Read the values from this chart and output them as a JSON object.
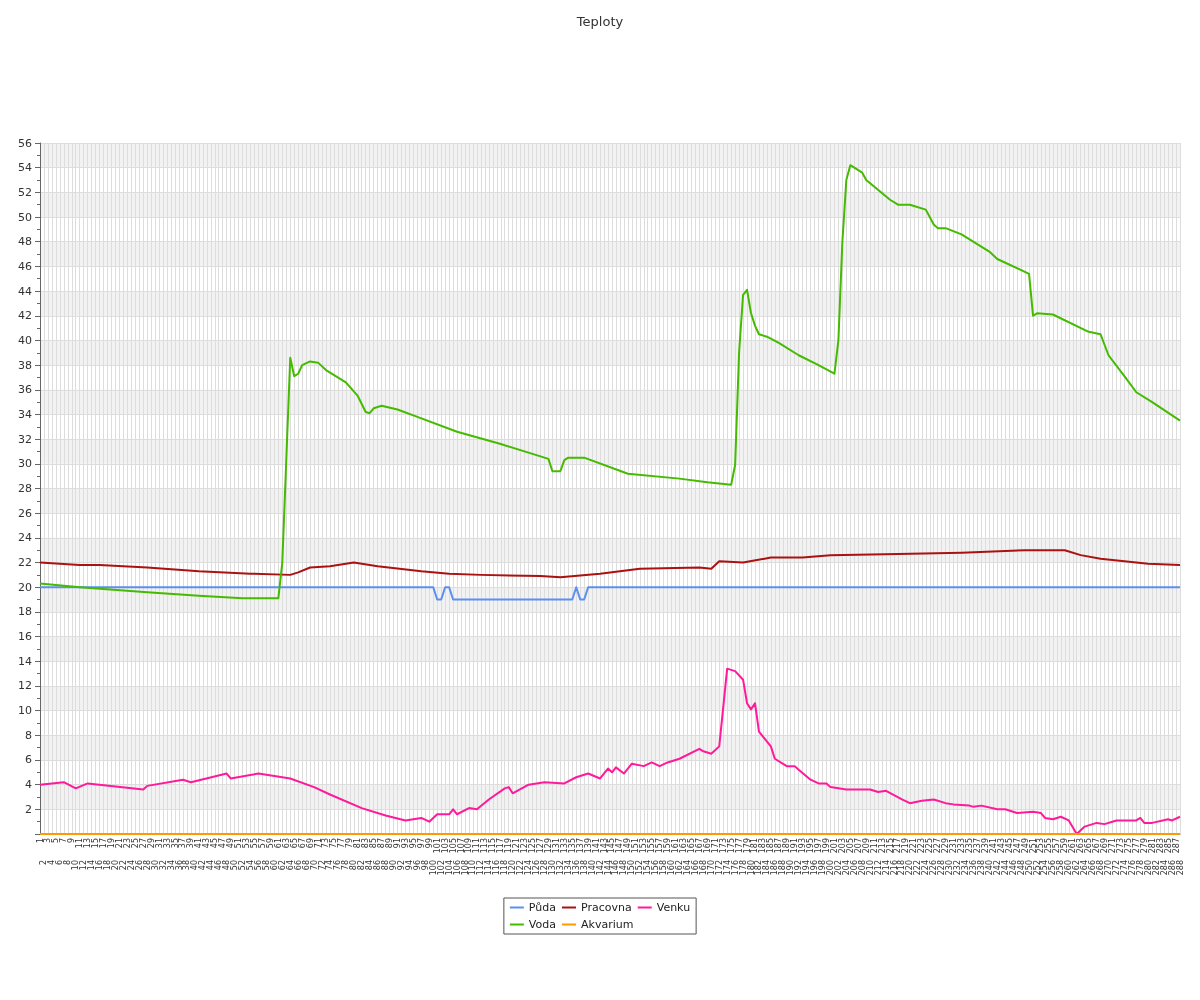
{
  "chart_data": {
    "type": "line",
    "title": "Teploty",
    "categories": [
      "1",
      "2",
      "3",
      "4",
      "5",
      "6",
      "7",
      "8",
      "9",
      "10",
      "11",
      "12",
      "13",
      "14",
      "15",
      "16",
      "17",
      "18",
      "19",
      "20",
      "21",
      "22",
      "23",
      "24",
      "25",
      "26",
      "27",
      "28",
      "29",
      "30",
      "31",
      "32",
      "33",
      "34",
      "35",
      "36",
      "37",
      "38",
      "39",
      "40",
      "41",
      "42",
      "43",
      "44",
      "45",
      "46",
      "47",
      "48",
      "49",
      "50",
      "51",
      "52",
      "53",
      "54",
      "55",
      "56",
      "57",
      "58",
      "59",
      "60",
      "61",
      "62",
      "63",
      "64",
      "65",
      "66",
      "67",
      "68",
      "69",
      "70",
      "71",
      "72",
      "73",
      "74",
      "75",
      "76",
      "77",
      "78",
      "79",
      "80",
      "81",
      "82",
      "83",
      "84",
      "85",
      "86",
      "87",
      "88",
      "89",
      "90",
      "91",
      "92",
      "93",
      "94",
      "95",
      "96",
      "97",
      "98",
      "99",
      "100",
      "101",
      "102",
      "103",
      "104",
      "105",
      "106",
      "107",
      "108",
      "109",
      "110",
      "111",
      "112",
      "113",
      "114",
      "115",
      "116",
      "117",
      "118",
      "119",
      "120",
      "121",
      "122",
      "123",
      "124",
      "125",
      "126",
      "127",
      "128",
      "129",
      "130",
      "131",
      "132",
      "133",
      "134",
      "135",
      "136",
      "137",
      "138",
      "139",
      "140",
      "141",
      "142",
      "143",
      "144",
      "145",
      "146",
      "147",
      "148",
      "149",
      "150",
      "151",
      "152",
      "153",
      "154",
      "155",
      "156",
      "157",
      "158",
      "159",
      "160",
      "161",
      "162",
      "163",
      "164",
      "165",
      "166",
      "167",
      "168",
      "169",
      "170",
      "171",
      "172",
      "173",
      "174",
      "175",
      "176",
      "177",
      "178",
      "179",
      "180",
      "181",
      "182",
      "183",
      "184",
      "185",
      "186",
      "187",
      "188",
      "189",
      "190",
      "191",
      "192",
      "193",
      "194",
      "195",
      "196",
      "197",
      "198",
      "199",
      "200",
      "201",
      "202",
      "203",
      "204",
      "205",
      "206",
      "207",
      "208",
      "209",
      "210",
      "211",
      "212",
      "213",
      "214",
      "215",
      "216",
      "217",
      "218",
      "219",
      "220",
      "221",
      "222",
      "223",
      "224",
      "225",
      "226",
      "227",
      "228",
      "229",
      "230",
      "231",
      "232",
      "233",
      "234",
      "235",
      "236",
      "237",
      "238",
      "239",
      "240",
      "241",
      "242",
      "243",
      "244",
      "245",
      "246",
      "247",
      "248",
      "249",
      "250",
      "251",
      "252",
      "253",
      "254",
      "255",
      "256",
      "257",
      "258",
      "259",
      "260",
      "261",
      "262",
      "263",
      "264",
      "265",
      "266",
      "267",
      "268",
      "269",
      "270",
      "271",
      "272",
      "273",
      "274",
      "275",
      "276",
      "277",
      "278",
      "279",
      "280",
      "281",
      "282",
      "283",
      "284",
      "285",
      "286",
      "287",
      "288"
    ],
    "series": [
      {
        "name": "Půda",
        "color": "#5b8ff0",
        "x": [
          "1",
          "100",
          "101",
          "102",
          "103",
          "104",
          "105",
          "135",
          "136",
          "137",
          "138",
          "139",
          "288"
        ],
        "values": [
          20,
          20,
          19,
          19,
          20,
          20,
          19,
          19,
          20,
          19,
          19,
          20,
          20
        ]
      },
      {
        "name": "Pracovna",
        "color": "#aa1111",
        "x": [
          "1",
          "11",
          "16",
          "28",
          "41",
          "54",
          "64",
          "66",
          "69",
          "74",
          "80",
          "86",
          "97",
          "104",
          "112",
          "127",
          "132",
          "142",
          "152",
          "167",
          "170",
          "172",
          "178",
          "185",
          "193",
          "200",
          "217",
          "233",
          "249",
          "259",
          "263",
          "268",
          "280",
          "288"
        ],
        "values": [
          22.0,
          21.8,
          21.8,
          21.6,
          21.3,
          21.1,
          21.0,
          21.2,
          21.6,
          21.7,
          22.0,
          21.7,
          21.3,
          21.1,
          21.0,
          20.9,
          20.8,
          21.1,
          21.5,
          21.6,
          21.5,
          22.1,
          22.0,
          22.4,
          22.4,
          22.6,
          22.7,
          22.8,
          23.0,
          23.0,
          22.6,
          22.3,
          21.9,
          21.8
        ]
      },
      {
        "name": "Venku",
        "color": "#ff1a99",
        "x": [
          "1",
          "7",
          "10",
          "13",
          "27",
          "28",
          "37",
          "39",
          "48",
          "49",
          "56",
          "64",
          "70",
          "74",
          "82",
          "88",
          "93",
          "97",
          "99",
          "101",
          "104",
          "105",
          "106",
          "109",
          "111",
          "114",
          "118",
          "119",
          "120",
          "124",
          "128",
          "133",
          "136",
          "139",
          "142",
          "144",
          "145",
          "146",
          "148",
          "150",
          "153",
          "155",
          "157",
          "159",
          "162",
          "167",
          "168",
          "170",
          "172",
          "174",
          "176",
          "178",
          "179",
          "180",
          "181",
          "182",
          "185",
          "186",
          "189",
          "191",
          "192",
          "195",
          "197",
          "199",
          "200",
          "204",
          "210",
          "212",
          "214",
          "218",
          "220",
          "223",
          "226",
          "229",
          "231",
          "235",
          "236",
          "238",
          "242",
          "244",
          "247",
          "251",
          "253",
          "254",
          "256",
          "258",
          "260",
          "262",
          "264",
          "266",
          "267",
          "269",
          "272",
          "277",
          "278",
          "279",
          "281",
          "285",
          "286",
          "288"
        ],
        "values": [
          4.0,
          4.2,
          3.7,
          4.1,
          3.6,
          3.9,
          4.4,
          4.2,
          4.9,
          4.5,
          4.9,
          4.5,
          3.8,
          3.2,
          2.1,
          1.5,
          1.1,
          1.3,
          1.0,
          1.6,
          1.6,
          2.0,
          1.6,
          2.1,
          2.0,
          2.8,
          3.7,
          3.8,
          3.3,
          4.0,
          4.2,
          4.1,
          4.6,
          4.9,
          4.5,
          5.3,
          5.0,
          5.4,
          4.9,
          5.7,
          5.5,
          5.8,
          5.5,
          5.8,
          6.1,
          6.9,
          6.7,
          6.5,
          7.1,
          13.4,
          13.2,
          12.5,
          10.6,
          10.1,
          10.6,
          8.3,
          7.1,
          6.1,
          5.5,
          5.5,
          5.2,
          4.4,
          4.1,
          4.1,
          3.8,
          3.6,
          3.6,
          3.4,
          3.5,
          2.8,
          2.5,
          2.7,
          2.8,
          2.5,
          2.4,
          2.3,
          2.2,
          2.3,
          2.0,
          2.0,
          1.7,
          1.8,
          1.7,
          1.3,
          1.2,
          1.4,
          1.1,
          0.0,
          0.6,
          0.8,
          0.9,
          0.8,
          1.1,
          1.1,
          1.3,
          0.9,
          0.9,
          1.2,
          1.1,
          1.4
        ]
      },
      {
        "name": "Voda",
        "color": "#44bb00",
        "x": [
          "1",
          "11",
          "28",
          "41",
          "52",
          "61",
          "62",
          "64",
          "65",
          "66",
          "67",
          "69",
          "71",
          "73",
          "78",
          "81",
          "83",
          "84",
          "85",
          "87",
          "91",
          "96",
          "106",
          "117",
          "127",
          "129",
          "130",
          "132",
          "133",
          "134",
          "138",
          "149",
          "162",
          "169",
          "175",
          "176",
          "177",
          "178",
          "179",
          "180",
          "181",
          "182",
          "184",
          "187",
          "192",
          "197",
          "201",
          "202",
          "203",
          "204",
          "205",
          "208",
          "209",
          "215",
          "217",
          "220",
          "224",
          "226",
          "227",
          "229",
          "233",
          "240",
          "242",
          "250",
          "251",
          "252",
          "256",
          "265",
          "268",
          "270",
          "274",
          "277",
          "281",
          "288"
        ],
        "values": [
          20.3,
          20.0,
          19.6,
          19.3,
          19.1,
          19.1,
          22.0,
          38.6,
          37.1,
          37.3,
          38.0,
          38.3,
          38.2,
          37.6,
          36.6,
          35.5,
          34.2,
          34.1,
          34.5,
          34.7,
          34.4,
          33.8,
          32.6,
          31.6,
          30.6,
          30.4,
          29.4,
          29.4,
          30.3,
          30.5,
          30.5,
          29.2,
          28.8,
          28.5,
          28.3,
          29.9,
          39.0,
          43.7,
          44.1,
          42.2,
          41.2,
          40.5,
          40.3,
          39.8,
          38.8,
          38.0,
          37.3,
          40.0,
          48.0,
          53.0,
          54.2,
          53.6,
          53.0,
          51.4,
          51.0,
          51.0,
          50.6,
          49.4,
          49.1,
          49.1,
          48.6,
          47.2,
          46.6,
          45.4,
          42.0,
          42.2,
          42.1,
          40.7,
          40.5,
          38.8,
          37.1,
          35.8,
          35.0,
          33.5
        ]
      },
      {
        "name": "Akvarium",
        "color": "#ff9900",
        "x": [
          "1",
          "288"
        ],
        "values": [
          0,
          0
        ]
      }
    ],
    "ylim": [
      0,
      56
    ],
    "yticks": [
      {
        "value": 0,
        "label": null
      },
      2,
      4,
      6,
      8,
      10,
      12,
      14,
      16,
      18,
      20,
      22,
      24,
      26,
      28,
      30,
      32,
      34,
      36,
      38,
      40,
      42,
      44,
      46,
      48,
      50,
      52,
      54,
      56
    ],
    "grid": true,
    "legend": "bottom",
    "marker": "none",
    "line_style": "solid"
  }
}
